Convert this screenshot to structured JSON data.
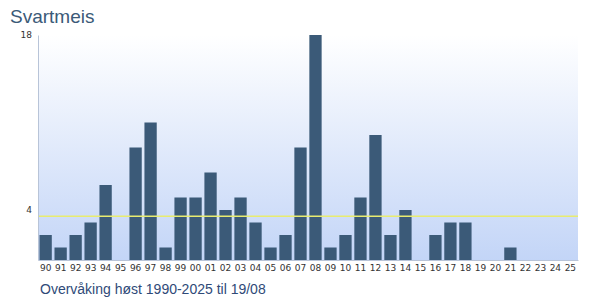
{
  "chart_data": {
    "type": "bar",
    "title": "Svartmeis",
    "subtitle": "Overvåking høst 1990-2025 til 19/08",
    "categories": [
      "90",
      "91",
      "92",
      "93",
      "94",
      "95",
      "96",
      "97",
      "98",
      "99",
      "00",
      "01",
      "02",
      "03",
      "04",
      "05",
      "06",
      "07",
      "08",
      "09",
      "10",
      "11",
      "12",
      "13",
      "14",
      "15",
      "16",
      "17",
      "18",
      "19",
      "20",
      "21",
      "22",
      "23",
      "24",
      "25"
    ],
    "values": [
      2,
      1,
      2,
      3,
      6,
      0,
      9,
      11,
      1,
      5,
      5,
      7,
      4,
      5,
      3,
      1,
      2,
      9,
      18,
      1,
      2,
      5,
      10,
      2,
      4,
      0,
      2,
      3,
      3,
      0,
      0,
      1,
      0,
      0,
      0,
      0
    ],
    "color": "#3b5a78",
    "average_line": 3.5,
    "ylim": [
      0,
      18
    ],
    "yticks": [
      4,
      18
    ],
    "grid": false
  }
}
